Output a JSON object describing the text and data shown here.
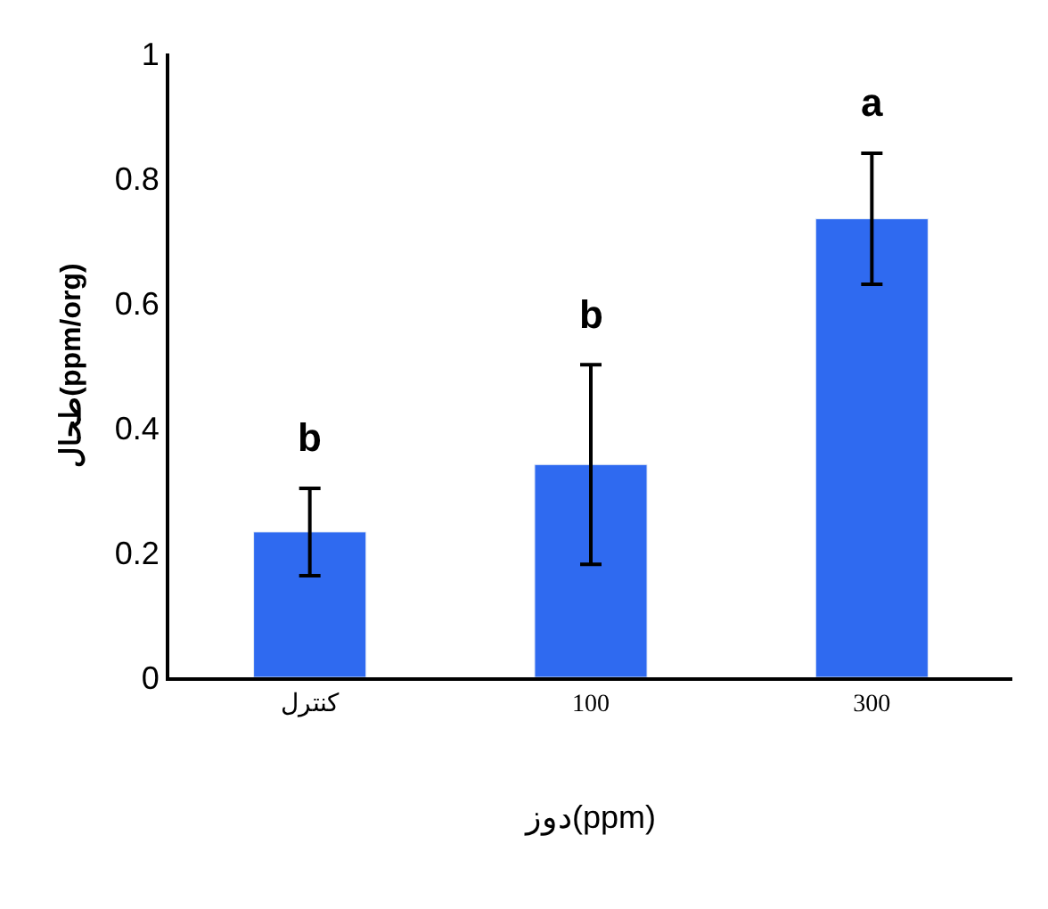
{
  "chart_data": {
    "type": "bar",
    "xlabel": "دوز(ppm)",
    "ylabel": "طحال(ppm/org)",
    "categories": [
      "کنترل",
      "100",
      "300"
    ],
    "values": [
      0.233,
      0.341,
      0.735
    ],
    "errors": [
      0.07,
      0.16,
      0.105
    ],
    "color": "#2f6af0",
    "ylim": [
      0,
      1
    ],
    "yticks": [
      0,
      0.2,
      0.4,
      0.6,
      0.8,
      1
    ],
    "legend": false,
    "annotations": [
      "b",
      "b",
      "a"
    ]
  }
}
